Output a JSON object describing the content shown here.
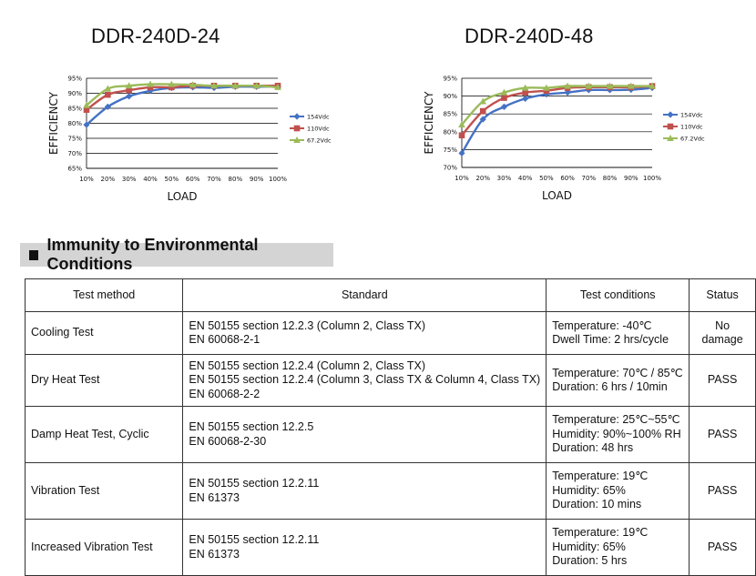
{
  "colors": {
    "series_154": "#4472C4",
    "series_110": "#C0504D",
    "series_67": "#9BBB59",
    "grid": "#000000",
    "heading_bg": "#d4d4d4"
  },
  "chart_data": [
    {
      "type": "line",
      "title": "DDR-240D-24",
      "xlabel": "LOAD",
      "ylabel": "EFFICIENCY",
      "categories": [
        "10%",
        "20%",
        "30%",
        "40%",
        "50%",
        "60%",
        "70%",
        "80%",
        "90%",
        "100%"
      ],
      "y_ticks": [
        "65%",
        "70%",
        "75%",
        "80%",
        "85%",
        "90%",
        "95%"
      ],
      "ylim": [
        65,
        95
      ],
      "legend_position": "right",
      "series": [
        {
          "name": "154Vdc",
          "marker": "diamond",
          "values": [
            79.5,
            85.5,
            89.0,
            90.8,
            91.8,
            92.0,
            91.8,
            92.2,
            92.2,
            92.3
          ]
        },
        {
          "name": "110Vdc",
          "marker": "square",
          "values": [
            84.5,
            89.5,
            91.0,
            92.0,
            92.0,
            92.5,
            92.5,
            92.5,
            92.5,
            92.5
          ]
        },
        {
          "name": "67.2Vdc",
          "marker": "triangle",
          "values": [
            86.0,
            91.5,
            92.5,
            93.0,
            93.0,
            92.8,
            92.5,
            92.5,
            92.5,
            92.0
          ]
        }
      ]
    },
    {
      "type": "line",
      "title": "DDR-240D-48",
      "xlabel": "LOAD",
      "ylabel": "EFFICIENCY",
      "categories": [
        "10%",
        "20%",
        "30%",
        "40%",
        "50%",
        "60%",
        "70%",
        "80%",
        "90%",
        "100%"
      ],
      "y_ticks": [
        "70%",
        "75%",
        "80%",
        "85%",
        "90%",
        "95%"
      ],
      "ylim": [
        70,
        95
      ],
      "legend_position": "right",
      "series": [
        {
          "name": "154Vdc",
          "marker": "diamond",
          "values": [
            74.0,
            83.5,
            87.0,
            89.3,
            90.5,
            91.0,
            91.7,
            91.7,
            91.8,
            92.3
          ]
        },
        {
          "name": "110Vdc",
          "marker": "square",
          "values": [
            79.0,
            85.8,
            89.5,
            91.0,
            91.5,
            92.3,
            92.5,
            92.5,
            92.5,
            92.8
          ]
        },
        {
          "name": "67.2Vdc",
          "marker": "triangle",
          "values": [
            82.0,
            88.5,
            91.0,
            92.3,
            92.3,
            92.8,
            92.8,
            92.8,
            92.8,
            92.8
          ]
        }
      ]
    }
  ],
  "section": {
    "title": "Immunity to Environmental Conditions"
  },
  "table": {
    "headers": [
      "Test method",
      "Standard",
      "Test conditions",
      "Status"
    ],
    "rows": [
      {
        "method": "Cooling Test",
        "standard": [
          "EN 50155 section 12.2.3 (Column 2, Class TX)",
          "EN 60068-2-1"
        ],
        "conditions": [
          "Temperature: -40℃",
          "Dwell Time: 2 hrs/cycle"
        ],
        "status": "No damage"
      },
      {
        "method": "Dry Heat Test",
        "standard": [
          "EN 50155 section 12.2.4 (Column 2, Class TX)",
          "EN 50155 section 12.2.4 (Column 3, Class TX & Column 4, Class TX)",
          "EN 60068-2-2"
        ],
        "conditions": [
          "Temperature: 70℃ / 85℃",
          "Duration: 6 hrs / 10min"
        ],
        "status": "PASS"
      },
      {
        "method": "Damp Heat Test, Cyclic",
        "standard": [
          "EN 50155 section 12.2.5",
          "EN 60068-2-30"
        ],
        "conditions": [
          "Temperature: 25℃~55℃",
          "Humidity: 90%~100% RH",
          "Duration: 48 hrs"
        ],
        "status": "PASS"
      },
      {
        "method": "Vibration Test",
        "standard": [
          "EN 50155 section 12.2.11",
          "EN 61373"
        ],
        "conditions": [
          "Temperature: 19℃",
          "Humidity: 65%",
          "Duration: 10 mins"
        ],
        "status": "PASS"
      },
      {
        "method": "Increased Vibration Test",
        "standard": [
          "EN 50155 section 12.2.11",
          "EN 61373"
        ],
        "conditions": [
          "Temperature: 19℃",
          "Humidity: 65%",
          "Duration: 5 hrs"
        ],
        "status": "PASS"
      }
    ]
  }
}
